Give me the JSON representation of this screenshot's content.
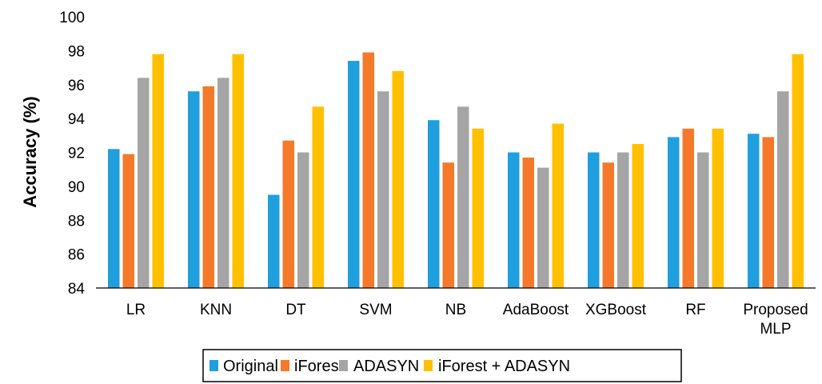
{
  "chart_data": {
    "type": "bar",
    "title": "",
    "xlabel": "",
    "ylabel": "Accuracy (%)",
    "ylim": [
      84,
      100
    ],
    "yticks": [
      "84",
      "86",
      "88",
      "90",
      "92",
      "94",
      "96",
      "98",
      "100"
    ],
    "grid": false,
    "legend_position": "bottom",
    "categories": [
      [
        "LR"
      ],
      [
        "KNN"
      ],
      [
        "DT"
      ],
      [
        "SVM"
      ],
      [
        "NB"
      ],
      [
        "AdaBoost"
      ],
      [
        "XGBoost"
      ],
      [
        "RF"
      ],
      [
        "Proposed",
        "MLP"
      ]
    ],
    "series": [
      {
        "name": "Original",
        "color": "#1f9fde",
        "values": [
          92.2,
          95.6,
          89.5,
          97.4,
          93.9,
          92.0,
          92.0,
          92.9,
          93.1
        ]
      },
      {
        "name": "iForest",
        "color": "#f5792a",
        "values": [
          91.9,
          95.9,
          92.7,
          97.9,
          91.4,
          91.7,
          91.4,
          93.4,
          92.9
        ]
      },
      {
        "name": "ADASYN",
        "color": "#a5a5a5",
        "values": [
          96.4,
          96.4,
          92.0,
          95.6,
          94.7,
          91.1,
          92.0,
          92.0,
          95.6
        ]
      },
      {
        "name": "iForest + ADASYN",
        "color": "#ffc000",
        "values": [
          97.8,
          97.8,
          94.7,
          96.8,
          93.4,
          93.7,
          92.5,
          93.4,
          97.8
        ]
      }
    ]
  }
}
